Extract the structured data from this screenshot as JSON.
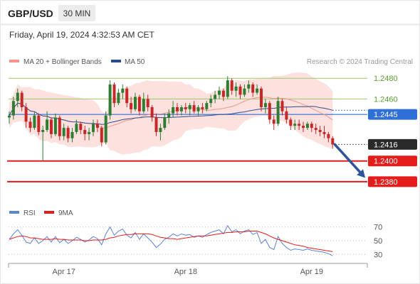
{
  "header": {
    "symbol": "GBP/USD",
    "timeframe": "30 MIN",
    "datetime": "Friday, April 19, 2024 4:32:53 AM CET"
  },
  "legend": {
    "items": [
      {
        "label": "MA 20 + Bollinger Bands",
        "color": "#f4948a"
      },
      {
        "label": "MA 50",
        "color": "#2b4c8c"
      }
    ],
    "credit": "Research © 2024 Trading Central"
  },
  "colors": {
    "up": "#2f7d32",
    "down": "#c62828",
    "band_fill": "#fcdcd8",
    "resistance": "#9bc56f",
    "support": "#e51c1c",
    "pivot": "#2f6fd8",
    "current": "#2a2a2a",
    "arrow": "#2e5597",
    "rsi": "#5b84d6",
    "rsi_ma": "#e51c1c"
  },
  "chart_data": [
    {
      "type": "candlestick",
      "title": "GBP/USD",
      "ylim": [
        1.236,
        1.2487
      ],
      "x_tick_labels": [
        {
          "label": "Apr 17",
          "index": 13
        },
        {
          "label": "Apr 18",
          "index": 42
        },
        {
          "label": "Apr 19",
          "index": 72
        }
      ],
      "candles": [
        [
          1.2442,
          1.2448,
          1.2436,
          1.2444
        ],
        [
          1.2444,
          1.2462,
          1.244,
          1.2458
        ],
        [
          1.2458,
          1.247,
          1.2452,
          1.2466
        ],
        [
          1.2466,
          1.2468,
          1.2448,
          1.2452
        ],
        [
          1.2452,
          1.2456,
          1.2432,
          1.2438
        ],
        [
          1.2438,
          1.2442,
          1.2428,
          1.2432
        ],
        [
          1.2432,
          1.2448,
          1.243,
          1.2444
        ],
        [
          1.2444,
          1.2446,
          1.2425,
          1.2428
        ],
        [
          1.2428,
          1.2434,
          1.24,
          1.243
        ],
        [
          1.243,
          1.2448,
          1.2428,
          1.244
        ],
        [
          1.244,
          1.2442,
          1.2422,
          1.2426
        ],
        [
          1.2426,
          1.2446,
          1.2424,
          1.2442
        ],
        [
          1.2442,
          1.2444,
          1.242,
          1.2424
        ],
        [
          1.2424,
          1.2436,
          1.242,
          1.2432
        ],
        [
          1.2432,
          1.2434,
          1.2418,
          1.2422
        ],
        [
          1.2422,
          1.2432,
          1.2418,
          1.2428
        ],
        [
          1.2428,
          1.244,
          1.2426,
          1.2436
        ],
        [
          1.2436,
          1.2438,
          1.2426,
          1.243
        ],
        [
          1.243,
          1.2434,
          1.242,
          1.2426
        ],
        [
          1.2426,
          1.2432,
          1.242,
          1.2428
        ],
        [
          1.2428,
          1.244,
          1.2424,
          1.2436
        ],
        [
          1.2436,
          1.244,
          1.2428,
          1.2432
        ],
        [
          1.2432,
          1.2434,
          1.2414,
          1.2418
        ],
        [
          1.2418,
          1.2448,
          1.2416,
          1.2444
        ],
        [
          1.2444,
          1.2478,
          1.244,
          1.2474
        ],
        [
          1.2474,
          1.2476,
          1.2452,
          1.2456
        ],
        [
          1.2456,
          1.247,
          1.2454,
          1.2466
        ],
        [
          1.2466,
          1.2474,
          1.246,
          1.247
        ],
        [
          1.247,
          1.2472,
          1.2452,
          1.2456
        ],
        [
          1.2456,
          1.2462,
          1.2446,
          1.245
        ],
        [
          1.245,
          1.2466,
          1.2448,
          1.2462
        ],
        [
          1.2462,
          1.2464,
          1.2444,
          1.2448
        ],
        [
          1.2448,
          1.2466,
          1.2446,
          1.246
        ],
        [
          1.246,
          1.2464,
          1.2448,
          1.2452
        ],
        [
          1.2452,
          1.2454,
          1.2438,
          1.2442
        ],
        [
          1.2442,
          1.2446,
          1.2424,
          1.2428
        ],
        [
          1.2428,
          1.2436,
          1.242,
          1.2432
        ],
        [
          1.2432,
          1.2446,
          1.243,
          1.2442
        ],
        [
          1.2442,
          1.245,
          1.2436,
          1.2446
        ],
        [
          1.2446,
          1.2458,
          1.2442,
          1.2452
        ],
        [
          1.2452,
          1.2456,
          1.2444,
          1.2448
        ],
        [
          1.2448,
          1.2454,
          1.2444,
          1.2452
        ],
        [
          1.2452,
          1.2456,
          1.2446,
          1.245
        ],
        [
          1.245,
          1.2456,
          1.2444,
          1.2454
        ],
        [
          1.2454,
          1.2458,
          1.2446,
          1.2448
        ],
        [
          1.2448,
          1.2454,
          1.2444,
          1.2452
        ],
        [
          1.2452,
          1.2456,
          1.2446,
          1.245
        ],
        [
          1.245,
          1.2458,
          1.2448,
          1.2456
        ],
        [
          1.2456,
          1.2464,
          1.2452,
          1.246
        ],
        [
          1.246,
          1.2468,
          1.2456,
          1.2464
        ],
        [
          1.2464,
          1.2472,
          1.246,
          1.2468
        ],
        [
          1.2468,
          1.247,
          1.2458,
          1.2462
        ],
        [
          1.2462,
          1.2482,
          1.246,
          1.2478
        ],
        [
          1.2478,
          1.248,
          1.2464,
          1.2468
        ],
        [
          1.2468,
          1.2476,
          1.2462,
          1.2472
        ],
        [
          1.2472,
          1.2474,
          1.246,
          1.2464
        ],
        [
          1.2464,
          1.2474,
          1.2462,
          1.247
        ],
        [
          1.247,
          1.2478,
          1.2466,
          1.2474
        ],
        [
          1.2474,
          1.2476,
          1.2462,
          1.2466
        ],
        [
          1.2466,
          1.2474,
          1.2464,
          1.247
        ],
        [
          1.247,
          1.2472,
          1.2448,
          1.2452
        ],
        [
          1.2452,
          1.246,
          1.2446,
          1.2456
        ],
        [
          1.2456,
          1.2458,
          1.2436,
          1.244
        ],
        [
          1.244,
          1.2444,
          1.243,
          1.2436
        ],
        [
          1.2436,
          1.2462,
          1.2434,
          1.2458
        ],
        [
          1.2458,
          1.246,
          1.2444,
          1.2448
        ],
        [
          1.2448,
          1.2452,
          1.2436,
          1.244
        ],
        [
          1.244,
          1.2442,
          1.243,
          1.2434
        ],
        [
          1.2434,
          1.244,
          1.243,
          1.2436
        ],
        [
          1.2436,
          1.244,
          1.243,
          1.2434
        ],
        [
          1.2434,
          1.2438,
          1.2428,
          1.2432
        ],
        [
          1.2432,
          1.2438,
          1.243,
          1.2436
        ],
        [
          1.2436,
          1.2438,
          1.2428,
          1.2432
        ],
        [
          1.2432,
          1.2436,
          1.2426,
          1.243
        ],
        [
          1.243,
          1.2434,
          1.2424,
          1.2428
        ],
        [
          1.2428,
          1.2434,
          1.2422,
          1.2426
        ],
        [
          1.2426,
          1.2428,
          1.2418,
          1.2422
        ],
        [
          1.2422,
          1.2424,
          1.2412,
          1.2416
        ]
      ],
      "levels": [
        {
          "name": "resistance",
          "value": 1.248,
          "label": "1.2480"
        },
        {
          "name": "resistance",
          "value": 1.246,
          "label": "1.2460"
        },
        {
          "name": "pivot",
          "value": 1.2445,
          "label": "1.2445"
        },
        {
          "name": "current",
          "value": 1.2416,
          "label": "1.2416"
        },
        {
          "name": "support",
          "value": 1.24,
          "label": "1.2400"
        },
        {
          "name": "support",
          "value": 1.238,
          "label": "1.2380"
        }
      ],
      "arrow": {
        "from": 1.2416,
        "to": 1.2384
      }
    },
    {
      "type": "line",
      "legend": [
        {
          "label": "RSI",
          "color": "#5b84d6"
        },
        {
          "label": "9MA",
          "color": "#e51c1c"
        }
      ],
      "ylim": [
        22,
        78
      ],
      "y_ticks": [
        70,
        50,
        30
      ],
      "series": [
        {
          "name": "RSI",
          "values": [
            52,
            60,
            66,
            58,
            48,
            46,
            54,
            46,
            50,
            56,
            48,
            56,
            47,
            52,
            46,
            50,
            55,
            52,
            48,
            51,
            56,
            53,
            44,
            60,
            70,
            58,
            64,
            67,
            58,
            54,
            62,
            52,
            60,
            54,
            48,
            40,
            45,
            52,
            55,
            60,
            57,
            60,
            58,
            59,
            55,
            57,
            55,
            59,
            62,
            64,
            66,
            60,
            72,
            63,
            66,
            60,
            64,
            66,
            59,
            62,
            46,
            52,
            40,
            37,
            56,
            46,
            40,
            36,
            38,
            37,
            36,
            38,
            36,
            35,
            34,
            33,
            31,
            28
          ]
        },
        {
          "name": "9MA",
          "values": [
            52,
            54,
            56,
            57,
            56,
            54,
            54,
            53,
            52,
            52,
            52,
            53,
            52,
            52,
            51,
            51,
            51,
            51,
            50,
            50,
            51,
            51,
            51,
            52,
            54,
            55,
            57,
            58,
            59,
            59,
            60,
            60,
            60,
            60,
            59,
            57,
            55,
            54,
            53,
            53,
            52,
            53,
            54,
            55,
            56,
            57,
            57,
            57,
            58,
            59,
            60,
            61,
            62,
            62,
            63,
            63,
            63,
            64,
            64,
            64,
            62,
            60,
            57,
            54,
            52,
            50,
            48,
            46,
            44,
            43,
            42,
            40,
            39,
            38,
            37,
            36,
            35,
            34
          ]
        }
      ]
    }
  ]
}
